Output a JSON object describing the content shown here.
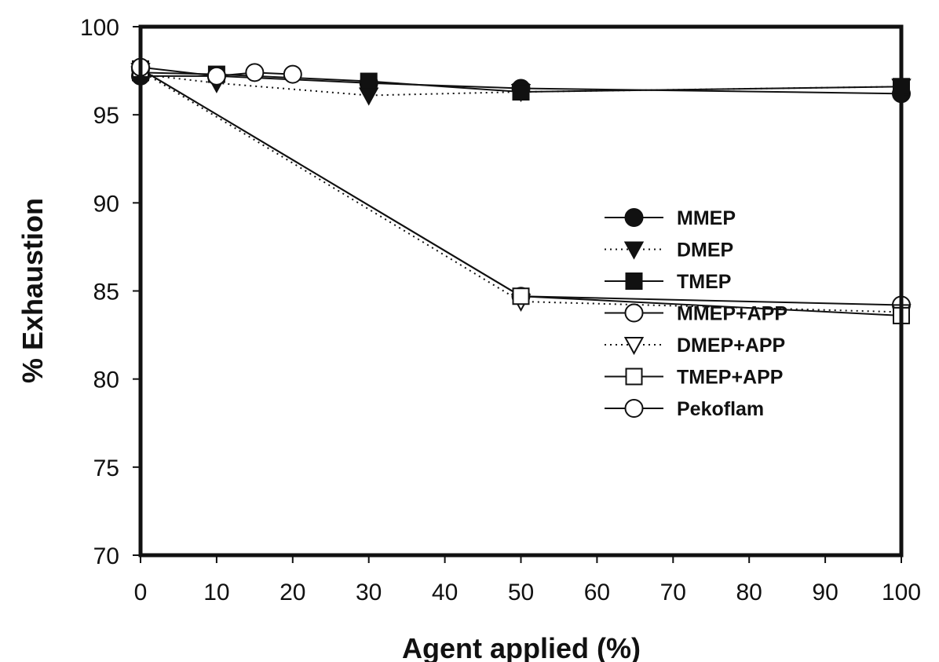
{
  "chart_data": {
    "type": "line",
    "title": "",
    "xlabel": "Agent applied (%)",
    "ylabel": "% Exhaustion",
    "xlim": [
      0,
      100
    ],
    "ylim": [
      70,
      100
    ],
    "xticks": [
      "0",
      "10",
      "20",
      "30",
      "40",
      "50",
      "60",
      "70",
      "80",
      "90",
      "100"
    ],
    "yticks": [
      "70",
      "75",
      "80",
      "85",
      "90",
      "95",
      "100"
    ],
    "grid": false,
    "legend_position": "right",
    "series": [
      {
        "name": "MMEP",
        "marker": "circle",
        "fill": "filled",
        "dash": "solid",
        "x": [
          0,
          10,
          30,
          50,
          100
        ],
        "y": [
          97.2,
          97.2,
          96.8,
          96.5,
          96.2
        ]
      },
      {
        "name": "DMEP",
        "marker": "triangle-down",
        "fill": "filled",
        "dash": "dotted",
        "x": [
          0,
          10,
          30,
          50,
          100
        ],
        "y": [
          97.3,
          96.8,
          96.1,
          96.3,
          96.6
        ]
      },
      {
        "name": "TMEP",
        "marker": "square",
        "fill": "filled",
        "dash": "solid",
        "x": [
          0,
          10,
          30,
          50,
          100
        ],
        "y": [
          97.4,
          97.3,
          96.9,
          96.3,
          96.6
        ]
      },
      {
        "name": "MMEP+APP",
        "marker": "circle",
        "fill": "open",
        "dash": "solid",
        "x": [
          0,
          50,
          100
        ],
        "y": [
          97.6,
          84.7,
          84.2
        ]
      },
      {
        "name": "DMEP+APP",
        "marker": "triangle-down",
        "fill": "open",
        "dash": "dotted",
        "x": [
          0,
          50,
          100
        ],
        "y": [
          97.5,
          84.4,
          83.8
        ]
      },
      {
        "name": "TMEP+APP",
        "marker": "square",
        "fill": "open",
        "dash": "solid",
        "x": [
          0,
          50,
          100
        ],
        "y": [
          97.6,
          84.7,
          83.6
        ]
      },
      {
        "name": "Pekoflam",
        "marker": "circle",
        "fill": "open",
        "dash": "solid",
        "x": [
          0,
          10,
          15,
          20
        ],
        "y": [
          97.7,
          97.2,
          97.4,
          97.3
        ]
      }
    ]
  }
}
